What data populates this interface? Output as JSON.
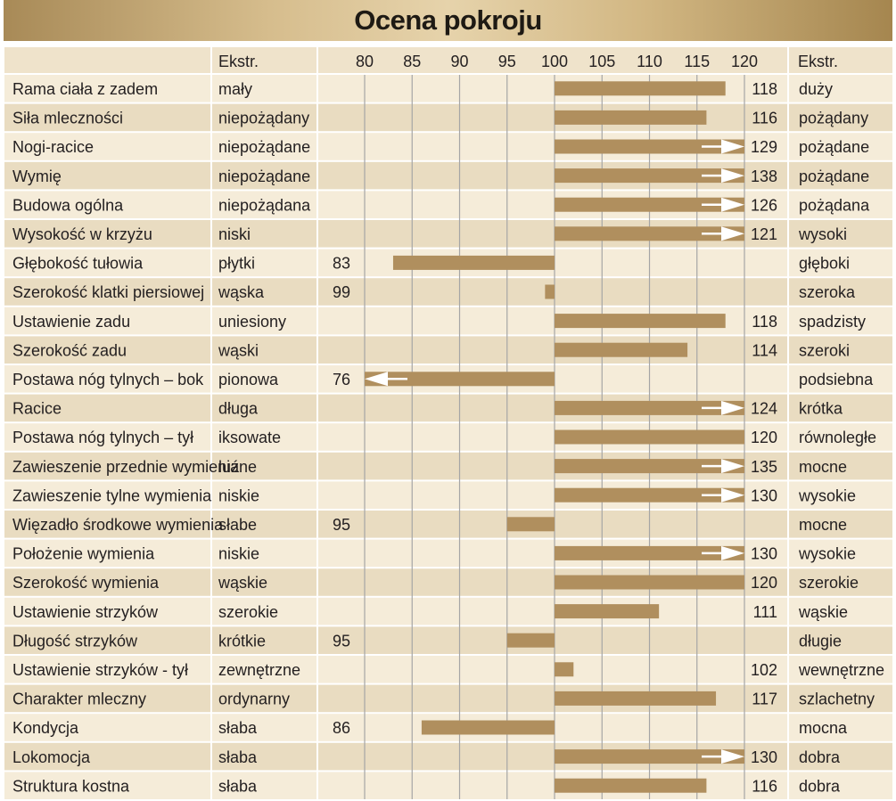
{
  "chart_data": {
    "type": "bar",
    "title": "Ocena pokroju",
    "header": {
      "left_extreme": "Ekstr.",
      "right_extreme": "Ekstr."
    },
    "baseline": 100,
    "xlim": [
      75,
      122
    ],
    "ticks": [
      80,
      85,
      90,
      95,
      100,
      105,
      110,
      115,
      120
    ],
    "colors": {
      "bar": "#b08f5e",
      "row_light": "#f5ecd9",
      "row_dark": "#e9dcc1",
      "header": "#efe3cb",
      "grid": "#a5a5a5",
      "arrow": "#ffffff",
      "title_bar": "#c8ad7c"
    },
    "rows": [
      {
        "trait": "Rama ciała z zadem",
        "low": "mały",
        "high": "duży",
        "value": 118,
        "arrow": false
      },
      {
        "trait": "Siła mleczności",
        "low": "niepożądany",
        "high": "pożądany",
        "value": 116,
        "arrow": false
      },
      {
        "trait": "Nogi-racice",
        "low": "niepożądane",
        "high": "pożądane",
        "value": 129,
        "arrow": true
      },
      {
        "trait": "Wymię",
        "low": "niepożądane",
        "high": "pożądane",
        "value": 138,
        "arrow": true
      },
      {
        "trait": "Budowa ogólna",
        "low": "niepożądana",
        "high": "pożądana",
        "value": 126,
        "arrow": true
      },
      {
        "trait": "Wysokość w krzyżu",
        "low": "niski",
        "high": "wysoki",
        "value": 121,
        "arrow": true
      },
      {
        "trait": "Głębokość tułowia",
        "low": "płytki",
        "high": "głęboki",
        "value": 83,
        "arrow": false
      },
      {
        "trait": "Szerokość klatki piersiowej",
        "low": "wąska",
        "high": "szeroka",
        "value": 99,
        "arrow": false
      },
      {
        "trait": "Ustawienie zadu",
        "low": "uniesiony",
        "high": "spadzisty",
        "value": 118,
        "arrow": false
      },
      {
        "trait": "Szerokość zadu",
        "low": "wąski",
        "high": "szeroki",
        "value": 114,
        "arrow": false
      },
      {
        "trait": "Postawa nóg tylnych – bok",
        "low": "pionowa",
        "high": "podsiebna",
        "value": 76,
        "arrow": true
      },
      {
        "trait": "Racice",
        "low": "długa",
        "high": "krótka",
        "value": 124,
        "arrow": true
      },
      {
        "trait": "Postawa nóg tylnych – tył",
        "low": "iksowate",
        "high": "równoległe",
        "value": 120,
        "arrow": false
      },
      {
        "trait": "Zawieszenie przednie wymienia",
        "low": "luźne",
        "high": "mocne",
        "value": 135,
        "arrow": true
      },
      {
        "trait": "Zawieszenie tylne wymienia",
        "low": "niskie",
        "high": "wysokie",
        "value": 130,
        "arrow": true
      },
      {
        "trait": "Więzadło środkowe wymienia",
        "low": "słabe",
        "high": "mocne",
        "value": 95,
        "arrow": false
      },
      {
        "trait": "Położenie wymienia",
        "low": "niskie",
        "high": "wysokie",
        "value": 130,
        "arrow": true
      },
      {
        "trait": "Szerokość wymienia",
        "low": "wąskie",
        "high": "szerokie",
        "value": 120,
        "arrow": false
      },
      {
        "trait": "Ustawienie strzyków",
        "low": "szerokie",
        "high": "wąskie",
        "value": 111,
        "arrow": false
      },
      {
        "trait": "Długość strzyków",
        "low": "krótkie",
        "high": "długie",
        "value": 95,
        "arrow": false
      },
      {
        "trait": "Ustawienie strzyków - tył",
        "low": "zewnętrzne",
        "high": "wewnętrzne",
        "value": 102,
        "arrow": false
      },
      {
        "trait": "Charakter mleczny",
        "low": "ordynarny",
        "high": "szlachetny",
        "value": 117,
        "arrow": false
      },
      {
        "trait": "Kondycja",
        "low": "słaba",
        "high": "mocna",
        "value": 86,
        "arrow": false
      },
      {
        "trait": "Lokomocja",
        "low": "słaba",
        "high": "dobra",
        "value": 130,
        "arrow": true
      },
      {
        "trait": "Struktura kostna",
        "low": "słaba",
        "high": "dobra",
        "value": 116,
        "arrow": false
      }
    ]
  }
}
